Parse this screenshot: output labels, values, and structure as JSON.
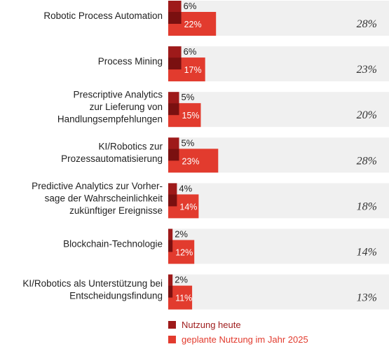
{
  "chart_data": {
    "type": "bar",
    "orientation": "horizontal",
    "title": "",
    "xlabel": "",
    "ylabel": "",
    "grid": false,
    "legend_position": "bottom",
    "value_unit": "%",
    "categories": [
      [
        "Robotic Process Automation"
      ],
      [
        "Process Mining"
      ],
      [
        "Prescriptive Analytics",
        "zur Lieferung von",
        "Handlungsempfehlungen"
      ],
      [
        "KI/Robotics zur",
        "Prozessautomatisierung"
      ],
      [
        "Predictive Analytics zur Vorher-",
        "sage der Wahrscheinlichkeit",
        "zukünftiger Ereignisse"
      ],
      [
        "Blockchain-Technologie"
      ],
      [
        "KI/Robotics als Unterstützung bei",
        "Entscheidungsfindung"
      ]
    ],
    "series": [
      {
        "name": "Nutzung heute",
        "color": "#9e1a1a",
        "values": [
          6,
          6,
          5,
          5,
          4,
          2,
          2
        ]
      },
      {
        "name": "geplante Nutzung im Jahr 2025",
        "color": "#e23b2e",
        "values": [
          22,
          17,
          15,
          23,
          14,
          12,
          11
        ]
      }
    ],
    "totals": [
      28,
      23,
      20,
      28,
      18,
      14,
      13
    ],
    "colors": {
      "overlap": "#7a1010",
      "band": "#f0f0f0"
    }
  }
}
